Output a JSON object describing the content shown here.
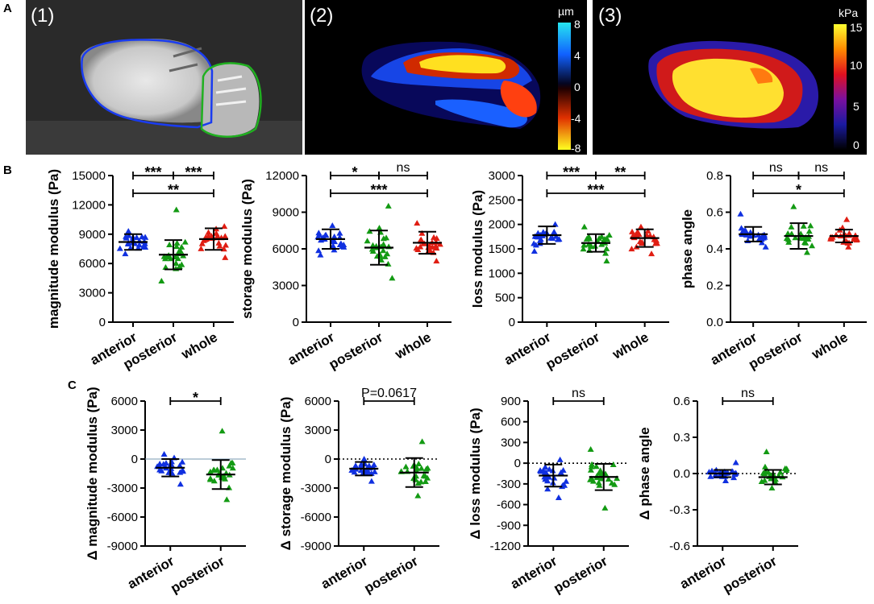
{
  "figure": {
    "panel_labels": [
      "A",
      "B",
      "C"
    ],
    "image_labels": [
      "(1)",
      "(2)",
      "(3)"
    ],
    "colorbar_displacement": {
      "unit": "µm",
      "ticks": [
        "8",
        "4",
        "0",
        "-4",
        "-8"
      ]
    },
    "colorbar_stiffness": {
      "unit": "kPa",
      "ticks": [
        "15",
        "10",
        "5",
        "0"
      ]
    }
  },
  "colors": {
    "anterior": "#1030e0",
    "posterior": "#139a13",
    "whole": "#e01d12"
  },
  "chart_data": [
    {
      "id": "B1",
      "type": "scatter",
      "ylabel": "magnitude modulus (Pa)",
      "ylim": [
        0,
        15000
      ],
      "yticks": [
        "0",
        "3000",
        "6000",
        "9000",
        "12000",
        "15000"
      ],
      "categories": [
        "anterior",
        "posterior",
        "whole"
      ],
      "series": [
        {
          "name": "anterior",
          "mean": 8200,
          "sd": 800,
          "n": 24,
          "min": 7000,
          "max": 9300
        },
        {
          "name": "posterior",
          "mean": 6900,
          "sd": 1500,
          "n": 24,
          "min": 4200,
          "max": 11500
        },
        {
          "name": "whole",
          "mean": 8500,
          "sd": 1100,
          "n": 24,
          "min": 6600,
          "max": 9800
        }
      ],
      "comparisons": [
        {
          "from": 0,
          "to": 1,
          "level": 0,
          "label": "***"
        },
        {
          "from": 1,
          "to": 2,
          "level": 0,
          "label": "***"
        },
        {
          "from": 0,
          "to": 2,
          "level": 1,
          "label": "**"
        }
      ]
    },
    {
      "id": "B2",
      "type": "scatter",
      "ylabel": "storage modulus (Pa)",
      "ylim": [
        0,
        12000
      ],
      "yticks": [
        "0",
        "3000",
        "6000",
        "9000",
        "12000"
      ],
      "categories": [
        "anterior",
        "posterior",
        "whole"
      ],
      "series": [
        {
          "name": "anterior",
          "mean": 6800,
          "sd": 800,
          "n": 24,
          "min": 5500,
          "max": 7900
        },
        {
          "name": "posterior",
          "mean": 6100,
          "sd": 1400,
          "n": 24,
          "min": 3600,
          "max": 9500
        },
        {
          "name": "whole",
          "mean": 6500,
          "sd": 900,
          "n": 24,
          "min": 5000,
          "max": 8100
        }
      ],
      "comparisons": [
        {
          "from": 0,
          "to": 1,
          "level": 0,
          "label": "*"
        },
        {
          "from": 1,
          "to": 2,
          "level": 0,
          "label": "ns"
        },
        {
          "from": 0,
          "to": 2,
          "level": 1,
          "label": "***"
        }
      ]
    },
    {
      "id": "B3",
      "type": "scatter",
      "ylabel": "loss modulus (Pa)",
      "ylim": [
        0,
        3000
      ],
      "yticks": [
        "0",
        "500",
        "1000",
        "1500",
        "2000",
        "2500",
        "3000"
      ],
      "categories": [
        "anterior",
        "posterior",
        "whole"
      ],
      "series": [
        {
          "name": "anterior",
          "mean": 1780,
          "sd": 180,
          "n": 24,
          "min": 1450,
          "max": 2000
        },
        {
          "name": "posterior",
          "mean": 1620,
          "sd": 180,
          "n": 24,
          "min": 1250,
          "max": 1950
        },
        {
          "name": "whole",
          "mean": 1720,
          "sd": 180,
          "n": 24,
          "min": 1400,
          "max": 1950
        }
      ],
      "comparisons": [
        {
          "from": 0,
          "to": 1,
          "level": 0,
          "label": "***"
        },
        {
          "from": 1,
          "to": 2,
          "level": 0,
          "label": "**"
        },
        {
          "from": 0,
          "to": 2,
          "level": 1,
          "label": "***"
        }
      ]
    },
    {
      "id": "B4",
      "type": "scatter",
      "ylabel": "phase angle",
      "ylim": [
        0,
        0.8
      ],
      "yticks": [
        "0.0",
        "0.2",
        "0.4",
        "0.6",
        "0.8"
      ],
      "categories": [
        "anterior",
        "posterior",
        "whole"
      ],
      "series": [
        {
          "name": "anterior",
          "mean": 0.48,
          "sd": 0.04,
          "n": 24,
          "min": 0.41,
          "max": 0.59
        },
        {
          "name": "posterior",
          "mean": 0.47,
          "sd": 0.07,
          "n": 24,
          "min": 0.38,
          "max": 0.63
        },
        {
          "name": "whole",
          "mean": 0.47,
          "sd": 0.035,
          "n": 24,
          "min": 0.41,
          "max": 0.56
        }
      ],
      "comparisons": [
        {
          "from": 0,
          "to": 1,
          "level": 0,
          "label": "ns"
        },
        {
          "from": 1,
          "to": 2,
          "level": 0,
          "label": "ns"
        },
        {
          "from": 0,
          "to": 2,
          "level": 1,
          "label": "*"
        }
      ]
    },
    {
      "id": "C1",
      "type": "scatter",
      "ylabel": "Δ magnitude modulus (Pa)",
      "ylim": [
        -9000,
        6000
      ],
      "yticks": [
        "-9000",
        "-6000",
        "-3000",
        "0",
        "3000",
        "6000"
      ],
      "zero_line": "solid",
      "categories": [
        "anterior",
        "posterior"
      ],
      "series": [
        {
          "name": "anterior",
          "mean": -900,
          "sd": 900,
          "n": 24,
          "min": -2600,
          "max": 500
        },
        {
          "name": "posterior",
          "mean": -1600,
          "sd": 1500,
          "n": 24,
          "min": -4200,
          "max": 2900
        }
      ],
      "comparisons": [
        {
          "from": 0,
          "to": 1,
          "level": 0,
          "label": "*"
        }
      ]
    },
    {
      "id": "C2",
      "type": "scatter",
      "ylabel": "Δ storage modulus (Pa)",
      "ylim": [
        -9000,
        6000
      ],
      "yticks": [
        "-9000",
        "-6000",
        "-3000",
        "0",
        "3000",
        "6000"
      ],
      "zero_line": "dotted",
      "categories": [
        "anterior",
        "posterior"
      ],
      "series": [
        {
          "name": "anterior",
          "mean": -1000,
          "sd": 700,
          "n": 24,
          "min": -2300,
          "max": 0
        },
        {
          "name": "posterior",
          "mean": -1400,
          "sd": 1500,
          "n": 24,
          "min": -3800,
          "max": 1800
        }
      ],
      "comparisons": [
        {
          "from": 0,
          "to": 1,
          "level": 0,
          "label": "P=0.0617"
        }
      ]
    },
    {
      "id": "C3",
      "type": "scatter",
      "ylabel": "Δ loss modulus (Pa)",
      "ylim": [
        -1200,
        900
      ],
      "yticks": [
        "-1200",
        "-900",
        "-600",
        "-300",
        "0",
        "300",
        "600",
        "900"
      ],
      "zero_line": "dotted",
      "categories": [
        "anterior",
        "posterior"
      ],
      "series": [
        {
          "name": "anterior",
          "mean": -180,
          "sd": 160,
          "n": 24,
          "min": -500,
          "max": 50
        },
        {
          "name": "posterior",
          "mean": -200,
          "sd": 190,
          "n": 24,
          "min": -650,
          "max": 200
        }
      ],
      "comparisons": [
        {
          "from": 0,
          "to": 1,
          "level": 0,
          "label": "ns"
        }
      ]
    },
    {
      "id": "C4",
      "type": "scatter",
      "ylabel": "Δ phase angle",
      "ylim": [
        -0.6,
        0.6
      ],
      "yticks": [
        "-0.6",
        "-0.3",
        "0.0",
        "0.3",
        "0.6"
      ],
      "zero_line": "dotted",
      "categories": [
        "anterior",
        "posterior"
      ],
      "series": [
        {
          "name": "anterior",
          "mean": 0.0,
          "sd": 0.03,
          "n": 24,
          "min": -0.06,
          "max": 0.09
        },
        {
          "name": "posterior",
          "mean": -0.03,
          "sd": 0.06,
          "n": 24,
          "min": -0.12,
          "max": 0.18
        }
      ],
      "comparisons": [
        {
          "from": 0,
          "to": 1,
          "level": 0,
          "label": "ns"
        }
      ]
    }
  ]
}
